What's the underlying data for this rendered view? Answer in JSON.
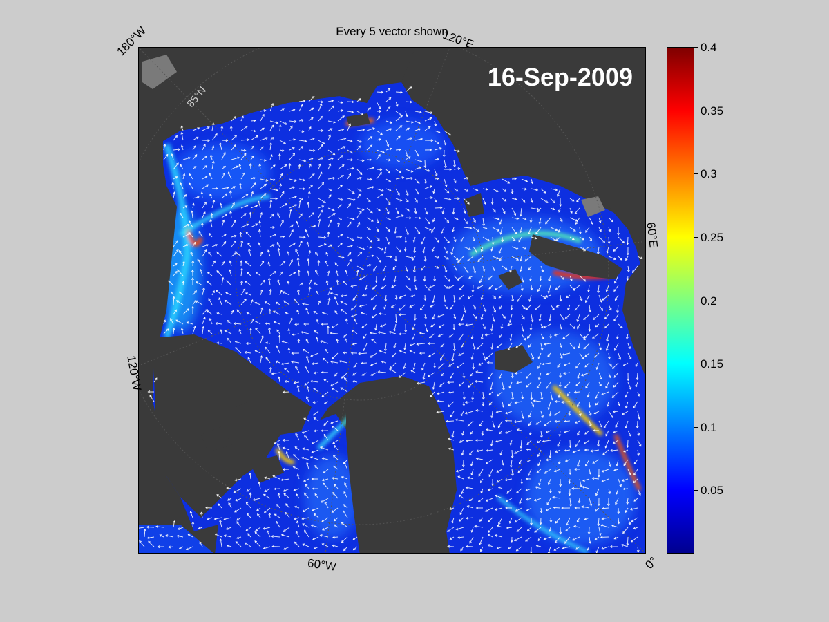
{
  "figure": {
    "title": "Every 5 vector shown",
    "date": "16-Sep-2009"
  },
  "map": {
    "longitude_labels": [
      "180°W",
      "120°E",
      "60°E",
      "0°",
      "60°W",
      "120°W"
    ],
    "latitude_label": "85°N"
  },
  "colorbar": {
    "ticks": [
      "0.4",
      "0.35",
      "0.3",
      "0.25",
      "0.2",
      "0.15",
      "0.1",
      "0.05"
    ],
    "range": [
      0,
      0.4
    ],
    "colormap": "jet"
  },
  "colors": {
    "background": "#cccccc",
    "land": "#3a3a3a",
    "ocean_low": "#0a28d8",
    "ocean_mid": "#2a7cff",
    "vectors": "#ffffff"
  }
}
